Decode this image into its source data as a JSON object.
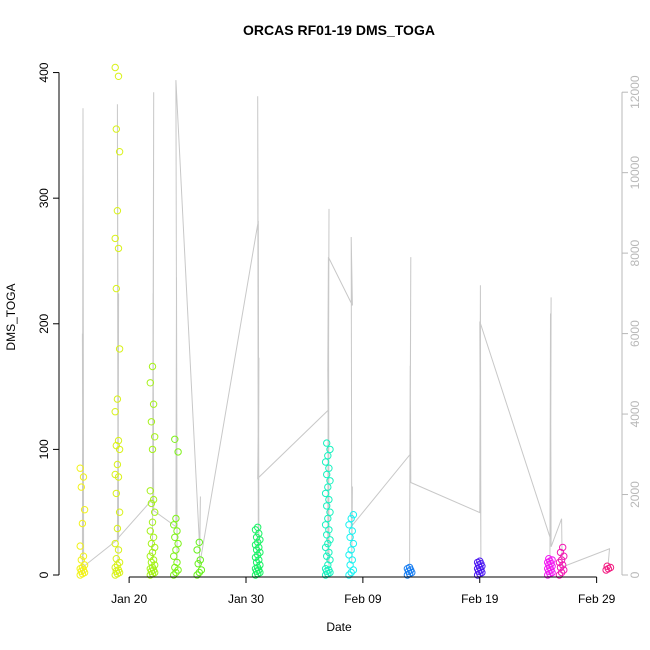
{
  "chart_data": {
    "type": "scatter",
    "title": "ORCAS RF01-19 DMS_TOGA",
    "xlabel": "Date",
    "ylabel": "DMS_TOGA",
    "xlim": [
      "2016-01-14",
      "2016-03-02"
    ],
    "ylim": [
      0,
      410
    ],
    "y2lim": [
      0,
      12800
    ],
    "x_ticks": [
      {
        "date": "2016-01-20",
        "label": "Jan 20"
      },
      {
        "date": "2016-01-30",
        "label": "Jan 30"
      },
      {
        "date": "2016-02-09",
        "label": "Feb 09"
      },
      {
        "date": "2016-02-19",
        "label": "Feb 19"
      },
      {
        "date": "2016-02-29",
        "label": "Feb 29"
      }
    ],
    "y_ticks": [
      0,
      100,
      200,
      300,
      400
    ],
    "y2_ticks": [
      0,
      2000,
      4000,
      6000,
      8000,
      10000,
      12000
    ],
    "y2_color": "#bebebe",
    "series": [
      {
        "date": "2016-01-16",
        "color": "#f2f21a",
        "y": [
          0,
          1,
          2,
          3,
          4,
          5,
          6,
          8,
          12,
          15,
          23,
          41,
          52,
          70,
          78,
          85
        ]
      },
      {
        "date": "2016-01-19",
        "color": "#d9f21a",
        "y": [
          0,
          1,
          2,
          3,
          4,
          6,
          8,
          10,
          13,
          20,
          25,
          37,
          50,
          65,
          78,
          80,
          88,
          100,
          103,
          107,
          130,
          140,
          180,
          228,
          260,
          268,
          290,
          337,
          355,
          397,
          404
        ]
      },
      {
        "date": "2016-01-22",
        "color": "#a6f21a",
        "y": [
          0,
          1,
          2,
          3,
          4,
          5,
          6,
          8,
          10,
          12,
          15,
          18,
          22,
          25,
          30,
          35,
          42,
          50,
          57,
          60,
          67,
          100,
          110,
          122,
          136,
          153,
          166
        ]
      },
      {
        "date": "2016-01-24",
        "color": "#7ff21a",
        "y": [
          0,
          2,
          4,
          6,
          10,
          15,
          20,
          25,
          30,
          35,
          40,
          45,
          98,
          108
        ]
      },
      {
        "date": "2016-01-26",
        "color": "#66f21a",
        "y": [
          0,
          2,
          4,
          9,
          12,
          20,
          26
        ]
      },
      {
        "date": "2016-01-31",
        "color": "#1af266",
        "y": [
          0,
          1,
          2,
          3,
          4,
          5,
          6,
          8,
          10,
          12,
          14,
          16,
          18,
          20,
          22,
          24,
          26,
          28,
          30,
          33,
          36,
          38
        ]
      },
      {
        "date": "2016-02-06",
        "color": "#1af2c0",
        "y": [
          0,
          1,
          2,
          3,
          4,
          5,
          8,
          12,
          15,
          18,
          22,
          25,
          28,
          32,
          36,
          40,
          45,
          50,
          55,
          60,
          65,
          70,
          75,
          80,
          85,
          90,
          95,
          100,
          105
        ]
      },
      {
        "date": "2016-02-08",
        "color": "#1af2f2",
        "y": [
          0,
          2,
          4,
          8,
          12,
          16,
          20,
          25,
          30,
          35,
          40,
          45,
          48
        ]
      },
      {
        "date": "2016-02-13",
        "color": "#1a7ff2",
        "y": [
          0,
          1,
          2,
          3,
          4,
          5,
          6
        ]
      },
      {
        "date": "2016-02-19",
        "color": "#4d1af2",
        "y": [
          0,
          1,
          2,
          3,
          4,
          5,
          6,
          7,
          8,
          9,
          10,
          11
        ]
      },
      {
        "date": "2016-02-25",
        "color": "#f21af2",
        "y": [
          0,
          1,
          2,
          3,
          4,
          5,
          6,
          7,
          8,
          9,
          10,
          11,
          12,
          13
        ]
      },
      {
        "date": "2016-02-26",
        "color": "#f21ab3",
        "y": [
          0,
          2,
          4,
          6,
          8,
          10,
          12,
          15,
          18,
          22
        ]
      },
      {
        "date": "2016-03-01",
        "color": "#f21a80",
        "y": [
          4,
          5,
          6,
          7
        ]
      }
    ],
    "overlay_line": {
      "color": "#c8c8c8",
      "axis": "right",
      "points": [
        [
          "2016-01-16",
          0
        ],
        [
          "2016-01-16",
          11600
        ],
        [
          "2016-01-16",
          500
        ],
        [
          "2016-01-16",
          6000
        ],
        [
          "2016-01-16",
          200
        ],
        [
          "2016-01-19",
          900
        ],
        [
          "2016-01-19",
          11700
        ],
        [
          "2016-01-19",
          300
        ],
        [
          "2016-01-19",
          7000
        ],
        [
          "2016-01-19",
          900
        ],
        [
          "2016-01-22",
          1900
        ],
        [
          "2016-01-22",
          12000
        ],
        [
          "2016-01-22",
          400
        ],
        [
          "2016-01-22",
          7000
        ],
        [
          "2016-01-22",
          1600
        ],
        [
          "2016-01-24",
          1200
        ],
        [
          "2016-01-24",
          7400
        ],
        [
          "2016-01-24",
          300
        ],
        [
          "2016-01-24",
          12300
        ],
        [
          "2016-01-26",
          600
        ],
        [
          "2016-01-26",
          1950
        ],
        [
          "2016-01-26",
          200
        ],
        [
          "2016-01-31",
          8800
        ],
        [
          "2016-01-31",
          300
        ],
        [
          "2016-01-31",
          11900
        ],
        [
          "2016-01-31",
          400
        ],
        [
          "2016-01-31",
          5400
        ],
        [
          "2016-01-31",
          2400
        ],
        [
          "2016-02-06",
          4100
        ],
        [
          "2016-02-06",
          9100
        ],
        [
          "2016-02-06",
          300
        ],
        [
          "2016-02-06",
          7900
        ],
        [
          "2016-02-06",
          200
        ],
        [
          "2016-02-06",
          5100
        ],
        [
          "2016-02-06",
          7900
        ],
        [
          "2016-02-08",
          6700
        ],
        [
          "2016-02-08",
          8400
        ],
        [
          "2016-02-08",
          300
        ],
        [
          "2016-02-08",
          2200
        ],
        [
          "2016-02-08",
          1200
        ],
        [
          "2016-02-13",
          3000
        ],
        [
          "2016-02-13",
          7900
        ],
        [
          "2016-02-13",
          200
        ],
        [
          "2016-02-13",
          5200
        ],
        [
          "2016-02-13",
          2300
        ],
        [
          "2016-02-19",
          1550
        ],
        [
          "2016-02-19",
          7200
        ],
        [
          "2016-02-19",
          300
        ],
        [
          "2016-02-19",
          6300
        ],
        [
          "2016-02-25",
          900
        ],
        [
          "2016-02-25",
          6900
        ],
        [
          "2016-02-25",
          200
        ],
        [
          "2016-02-25",
          6500
        ],
        [
          "2016-02-25",
          700
        ],
        [
          "2016-02-26",
          1400
        ],
        [
          "2016-02-26",
          200
        ],
        [
          "2016-03-01",
          650
        ],
        [
          "2016-03-01",
          300
        ]
      ]
    }
  }
}
